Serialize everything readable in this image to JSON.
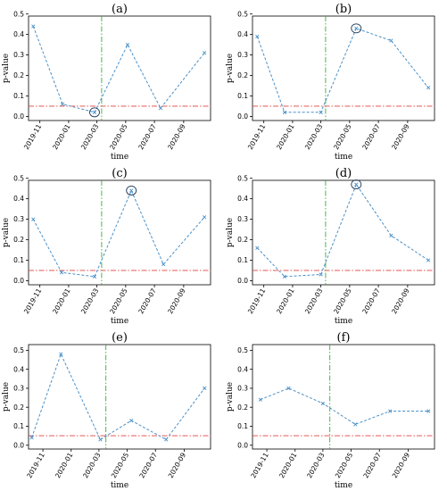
{
  "chart_data": [
    {
      "type": "line",
      "title": "(a)",
      "xlabel": "time",
      "ylabel": "p-value",
      "x_ticks": [
        "2019-11",
        "2020-01",
        "2020-03",
        "2020-05",
        "2020-07",
        "2020-09"
      ],
      "y_ticks": [
        "0.0",
        "0.1",
        "0.2",
        "0.3",
        "0.4",
        "0.5"
      ],
      "ylim": [
        -0.02,
        0.49
      ],
      "xlim": [
        "2019-10-08",
        "2020-10-28"
      ],
      "dates": [
        "2019-10-18",
        "2019-12-19",
        "2020-02-25",
        "2020-05-05",
        "2020-07-14",
        "2020-10-15"
      ],
      "values": [
        0.44,
        0.06,
        0.02,
        0.35,
        0.04,
        0.31
      ],
      "highlight_index": 2,
      "event_date": "2020-03-11",
      "threshold": 0.05
    },
    {
      "type": "line",
      "title": "(b)",
      "xlabel": "time",
      "ylabel": "p-value",
      "x_ticks": [
        "2019-11",
        "2020-01",
        "2020-03",
        "2020-05",
        "2020-07",
        "2020-09"
      ],
      "y_ticks": [
        "0.0",
        "0.1",
        "0.2",
        "0.3",
        "0.4",
        "0.5"
      ],
      "ylim": [
        -0.02,
        0.49
      ],
      "xlim": [
        "2019-10-08",
        "2020-10-28"
      ],
      "dates": [
        "2019-10-18",
        "2019-12-15",
        "2020-03-01",
        "2020-05-15",
        "2020-07-28",
        "2020-10-15"
      ],
      "values": [
        0.39,
        0.02,
        0.02,
        0.43,
        0.37,
        0.14
      ],
      "highlight_index": 3,
      "event_date": "2020-03-11",
      "threshold": 0.05
    },
    {
      "type": "line",
      "title": "(c)",
      "xlabel": "time",
      "ylabel": "p-value",
      "x_ticks": [
        "2019-11",
        "2020-01",
        "2020-03",
        "2020-05",
        "2020-07",
        "2020-09"
      ],
      "y_ticks": [
        "0.0",
        "0.1",
        "0.2",
        "0.3",
        "0.4",
        "0.5"
      ],
      "ylim": [
        -0.02,
        0.49
      ],
      "xlim": [
        "2019-10-08",
        "2020-10-28"
      ],
      "dates": [
        "2019-10-18",
        "2019-12-17",
        "2020-02-25",
        "2020-05-13",
        "2020-07-20",
        "2020-10-15"
      ],
      "values": [
        0.3,
        0.04,
        0.02,
        0.44,
        0.08,
        0.31
      ],
      "highlight_index": 3,
      "event_date": "2020-03-11",
      "threshold": 0.05
    },
    {
      "type": "line",
      "title": "(d)",
      "xlabel": "time",
      "ylabel": "p-value",
      "x_ticks": [
        "2019-11",
        "2020-01",
        "2020-03",
        "2020-05",
        "2020-07",
        "2020-09"
      ],
      "y_ticks": [
        "0.0",
        "0.1",
        "0.2",
        "0.3",
        "0.4",
        "0.5"
      ],
      "ylim": [
        -0.02,
        0.49
      ],
      "xlim": [
        "2019-10-08",
        "2020-10-28"
      ],
      "dates": [
        "2019-10-18",
        "2019-12-15",
        "2020-03-01",
        "2020-05-15",
        "2020-07-28",
        "2020-10-15"
      ],
      "values": [
        0.16,
        0.02,
        0.03,
        0.47,
        0.22,
        0.1
      ],
      "highlight_index": 3,
      "event_date": "2020-03-11",
      "threshold": 0.05
    },
    {
      "type": "line",
      "title": "(e)",
      "xlabel": "time",
      "ylabel": "p-value",
      "x_ticks": [
        "2019-11",
        "2020-01",
        "2020-03",
        "2020-05",
        "2020-07",
        "2020-09"
      ],
      "y_ticks": [
        "0.0",
        "0.1",
        "0.2",
        "0.3",
        "0.4",
        "0.5"
      ],
      "ylim": [
        -0.02,
        0.53
      ],
      "xlim": [
        "2019-10-01",
        "2020-10-28"
      ],
      "dates": [
        "2019-10-08",
        "2019-12-10",
        "2020-03-04",
        "2020-05-10",
        "2020-07-24",
        "2020-10-15"
      ],
      "values": [
        0.04,
        0.48,
        0.03,
        0.13,
        0.03,
        0.3
      ],
      "highlight_index": null,
      "event_date": "2020-03-16",
      "threshold": 0.05
    },
    {
      "type": "line",
      "title": "(f)",
      "xlabel": "time",
      "ylabel": "p-value",
      "x_ticks": [
        "2019-11",
        "2020-01",
        "2020-03",
        "2020-05",
        "2020-07",
        "2020-09"
      ],
      "y_ticks": [
        "0.0",
        "0.1",
        "0.2",
        "0.3",
        "0.4",
        "0.5"
      ],
      "ylim": [
        -0.02,
        0.53
      ],
      "xlim": [
        "2019-10-01",
        "2020-10-28"
      ],
      "dates": [
        "2019-10-18",
        "2019-12-18",
        "2020-03-01",
        "2020-05-10",
        "2020-07-24",
        "2020-10-15"
      ],
      "values": [
        0.24,
        0.3,
        0.22,
        0.11,
        0.18,
        0.18
      ],
      "highlight_index": null,
      "event_date": "2020-03-16",
      "threshold": 0.05
    }
  ],
  "colors": {
    "series": "#4a90c8",
    "threshold": "#e0413c",
    "event_line": "#3aaa3a",
    "axis": "#000000"
  }
}
